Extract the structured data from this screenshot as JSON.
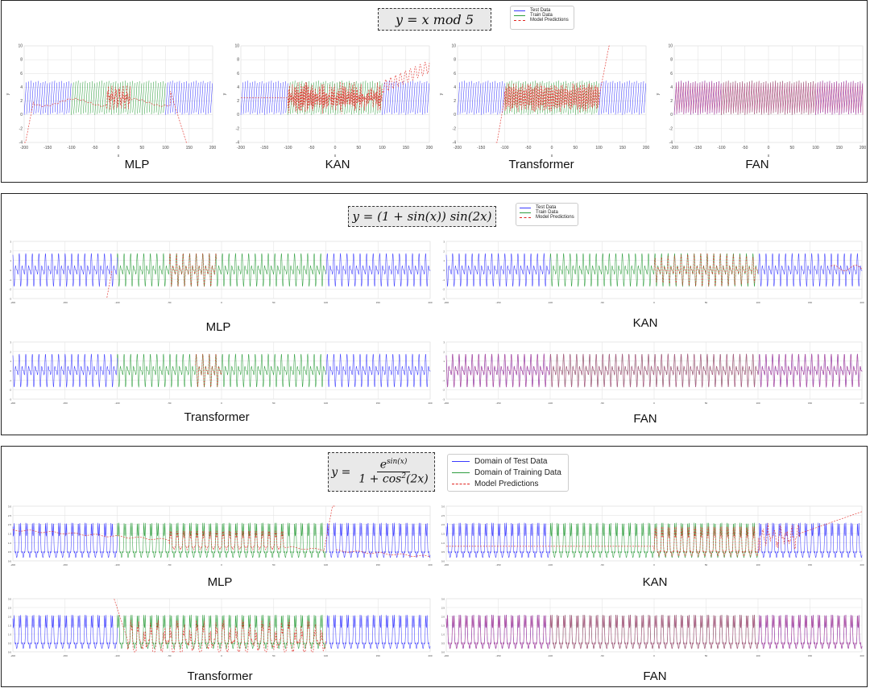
{
  "colors": {
    "test": "#3b3bff",
    "train": "#2e9e3e",
    "pred": "#e0241f",
    "fan_mix": "#c0508e",
    "grid": "#e4e4e4"
  },
  "panels": [
    {
      "id": "mod",
      "formula": "y = x mod 5",
      "legend": [
        "Test Data",
        "Train Data",
        "Model Predictions"
      ],
      "chart_data": [
        {
          "type": "line",
          "title": "MLP",
          "function": "y = x mod 5",
          "xlim": [
            -200,
            200
          ],
          "ylim": [
            -4,
            10
          ],
          "xticks": [
            "-200",
            "-150",
            "-100",
            "-50",
            "0",
            "50",
            "100",
            "150",
            "200"
          ],
          "yticks": [
            "-4",
            "-2",
            "0",
            "2",
            "4",
            "6",
            "8",
            "10"
          ],
          "xlabel": "x",
          "ylabel": "y",
          "train_range": [
            -100,
            100
          ],
          "series": [
            {
              "name": "Test Data",
              "values": "x mod 5"
            },
            {
              "name": "Train Data",
              "values": "x mod 5"
            },
            {
              "name": "Model Predictions",
              "values": "approx 2.5 inside train domain, noisy near 0, drops below -4 at x≈-200 and x≈150"
            }
          ]
        },
        {
          "type": "line",
          "title": "KAN",
          "function": "y = x mod 5",
          "xlim": [
            -200,
            200
          ],
          "ylim": [
            -4,
            10
          ],
          "xticks": [
            "-200",
            "-150",
            "-100",
            "-50",
            "0",
            "50",
            "100",
            "150",
            "200"
          ],
          "yticks": [
            "-4",
            "-2",
            "0",
            "2",
            "4",
            "6",
            "8",
            "10"
          ],
          "xlabel": "x",
          "ylabel": "y",
          "train_range": [
            -100,
            100
          ],
          "series": [
            {
              "name": "Model Predictions",
              "values": "flat 2.5 left, oscillating 0-5 on train, rises to 7 on right"
            }
          ]
        },
        {
          "type": "line",
          "title": "Transformer",
          "function": "y = x mod 5",
          "xlim": [
            -200,
            200
          ],
          "ylim": [
            -4,
            10
          ],
          "xticks": [
            "-200",
            "-150",
            "-100",
            "-50",
            "0",
            "50",
            "100",
            "150",
            "200"
          ],
          "yticks": [
            "-4",
            "-2",
            "0",
            "2",
            "4",
            "6",
            "8",
            "10"
          ],
          "xlabel": "x",
          "ylabel": "y",
          "train_range": [
            -100,
            100
          ],
          "series": [
            {
              "name": "Model Predictions",
              "values": "noisy 0-5 on train, linear divergence outside"
            }
          ]
        },
        {
          "type": "line",
          "title": "FAN",
          "function": "y = x mod 5",
          "xlim": [
            -200,
            200
          ],
          "ylim": [
            -4,
            10
          ],
          "xticks": [
            "-200",
            "-150",
            "-100",
            "-50",
            "0",
            "50",
            "100",
            "150",
            "200"
          ],
          "yticks": [
            "-4",
            "-2",
            "0",
            "2",
            "4",
            "6",
            "8",
            "10"
          ],
          "xlabel": "x",
          "ylabel": "y",
          "train_range": [
            -100,
            100
          ],
          "series": [
            {
              "name": "Model Predictions",
              "values": "matches x mod 5 across full range"
            }
          ]
        }
      ]
    },
    {
      "id": "sin",
      "formula": "y = (1 + sin(x)) sin(2x)",
      "legend": [
        "Test Data",
        "Train Data",
        "Model Predictions"
      ],
      "chart_data": [
        {
          "type": "line",
          "title": "MLP",
          "function": "y = (1 + sin(x)) sin(2x)",
          "xlim": [
            -200,
            200
          ],
          "ylim": [
            -3,
            3
          ],
          "xticks": [
            "-200",
            "-150",
            "-100",
            "-50",
            "0",
            "50",
            "100",
            "150",
            "200"
          ],
          "yticks": [
            "-3",
            "-2",
            "-1",
            "0",
            "1",
            "2",
            "3"
          ],
          "train_range": [
            -100,
            100
          ],
          "series": [
            {
              "name": "Model Predictions",
              "values": "tracks near x≈-50..0, diverges to -3 near x≈-110"
            }
          ]
        },
        {
          "type": "line",
          "title": "KAN",
          "function": "y = (1 + sin(x)) sin(2x)",
          "xlim": [
            -200,
            200
          ],
          "ylim": [
            -3,
            3
          ],
          "xticks": [
            "-200",
            "-150",
            "-100",
            "-50",
            "0",
            "50",
            "100",
            "150",
            "200"
          ],
          "yticks": [
            "-3",
            "-2",
            "-1",
            "0",
            "1",
            "2",
            "3"
          ],
          "train_range": [
            -100,
            100
          ],
          "series": [
            {
              "name": "Model Predictions",
              "values": "fits part of train domain, drifts outside"
            }
          ]
        },
        {
          "type": "line",
          "title": "Transformer",
          "function": "y = (1 + sin(x)) sin(2x)",
          "xlim": [
            -200,
            200
          ],
          "ylim": [
            -3,
            3
          ],
          "xticks": [
            "-200",
            "-150",
            "-100",
            "-50",
            "0",
            "50",
            "100",
            "150",
            "200"
          ],
          "yticks": [
            "-3",
            "-2",
            "-1",
            "0",
            "1",
            "2",
            "3"
          ],
          "train_range": [
            -100,
            100
          ],
          "series": [
            {
              "name": "Model Predictions",
              "values": "fits x≈-20..0 only"
            }
          ]
        },
        {
          "type": "line",
          "title": "FAN",
          "function": "y = (1 + sin(x)) sin(2x)",
          "xlim": [
            -200,
            200
          ],
          "ylim": [
            -3,
            3
          ],
          "xticks": [
            "-200",
            "-150",
            "-100",
            "-50",
            "0",
            "50",
            "100",
            "150",
            "200"
          ],
          "yticks": [
            "-3",
            "-2",
            "-1",
            "0",
            "1",
            "2",
            "3"
          ],
          "train_range": [
            -100,
            100
          ],
          "series": [
            {
              "name": "Model Predictions",
              "values": "matches across full range"
            }
          ]
        }
      ]
    },
    {
      "id": "exp",
      "formula_lhs": "y =",
      "formula_num": "e^sin(x)",
      "formula_num_base": "e",
      "formula_num_exp": "sin(x)",
      "formula_den": "1 + cos²(2x)",
      "formula_den_a": "1 + cos",
      "formula_den_sup": "2",
      "formula_den_b": "(2x)",
      "legend": [
        "Domain of Test Data",
        "Domain of Training Data",
        "Model Predictions"
      ],
      "chart_data": [
        {
          "type": "line",
          "title": "MLP",
          "function": "y = e^sin(x) / (1 + cos^2(2x))",
          "xlim": [
            -200,
            200
          ],
          "ylim": [
            0,
            3
          ],
          "xticks": [
            "-200",
            "-150",
            "-100",
            "-50",
            "0",
            "50",
            "100",
            "150",
            "200"
          ],
          "yticks": [
            "0.0",
            "0.5",
            "1.0",
            "1.5",
            "2.0",
            "2.5",
            "3.0"
          ],
          "train_range": [
            -100,
            100
          ],
          "series": [
            {
              "name": "Model Predictions",
              "values": "smooth trend ~1.7 to 0.5, spikes near x≈100"
            }
          ]
        },
        {
          "type": "line",
          "title": "KAN",
          "function": "y = e^sin(x) / (1 + cos^2(2x))",
          "xlim": [
            -200,
            200
          ],
          "ylim": [
            0,
            3
          ],
          "xticks": [
            "-200",
            "-150",
            "-100",
            "-50",
            "0",
            "50",
            "100",
            "150",
            "200"
          ],
          "yticks": [
            "0.0",
            "0.5",
            "1.0",
            "1.5",
            "2.0",
            "2.5",
            "3.0"
          ],
          "train_range": [
            -100,
            100
          ],
          "series": [
            {
              "name": "Model Predictions",
              "values": "flat ~0.8 left, rises linearly to ~2.7 on right"
            }
          ]
        },
        {
          "type": "line",
          "title": "Transformer",
          "function": "y = e^sin(x) / (1 + cos^2(2x))",
          "xlim": [
            -200,
            200
          ],
          "ylim": [
            0,
            3
          ],
          "xticks": [
            "-200",
            "-150",
            "-100",
            "-50",
            "0",
            "50",
            "100",
            "150",
            "200"
          ],
          "yticks": [
            "0.0",
            "0.5",
            "1.0",
            "1.5",
            "2.0",
            "2.5",
            "3.0"
          ],
          "train_range": [
            -100,
            100
          ],
          "series": [
            {
              "name": "Model Predictions",
              "values": "fits partly on train, spikes up near x≈-100"
            }
          ]
        },
        {
          "type": "line",
          "title": "FAN",
          "function": "y = e^sin(x) / (1 + cos^2(2x))",
          "xlim": [
            -200,
            200
          ],
          "ylim": [
            0,
            3
          ],
          "xticks": [
            "-200",
            "-150",
            "-100",
            "-50",
            "0",
            "50",
            "100",
            "150",
            "200"
          ],
          "yticks": [
            "0.0",
            "0.5",
            "1.0",
            "1.5",
            "2.0",
            "2.5",
            "3.0"
          ],
          "train_range": [
            -100,
            100
          ],
          "series": [
            {
              "name": "Model Predictions",
              "values": "matches across full range"
            }
          ]
        }
      ]
    }
  ],
  "labels": {
    "mlp": "MLP",
    "kan": "KAN",
    "transformer": "Transformer",
    "fan": "FAN"
  }
}
